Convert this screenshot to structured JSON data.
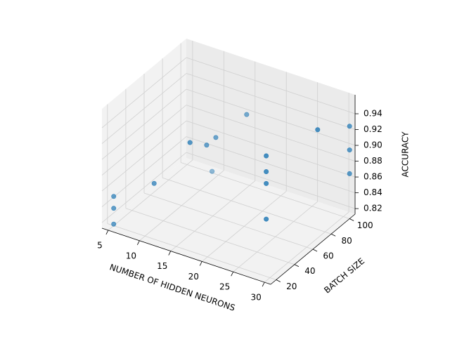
{
  "chart_data": {
    "type": "scatter3d",
    "x_label": "NUMBER OF HIDDEN NEURONS",
    "y_label": "BATCH SIZE",
    "z_label": "ACCURACY",
    "x": [
      5,
      5,
      5,
      10,
      15,
      14,
      14,
      9,
      16,
      25,
      25,
      25,
      25,
      30,
      31,
      31,
      31
    ],
    "y": [
      20,
      20,
      20,
      30,
      35,
      60,
      70,
      100,
      90,
      50,
      50,
      50,
      50,
      72,
      100,
      100,
      100
    ],
    "z": [
      0.815,
      0.835,
      0.85,
      0.87,
      0.93,
      0.9,
      0.9,
      0.815,
      0.915,
      0.925,
      0.905,
      0.89,
      0.845,
      0.95,
      0.93,
      0.9,
      0.87
    ],
    "color": "#1f77b4",
    "xlim": [
      4,
      31
    ],
    "ylim": [
      14,
      106
    ],
    "zlim": [
      0.813,
      0.964
    ],
    "xticks": [
      5,
      10,
      15,
      20,
      25,
      30
    ],
    "yticks": [
      20,
      40,
      60,
      80,
      100
    ],
    "zticks": [
      0.82,
      0.84,
      0.86,
      0.88,
      {
        "value": 0.9,
        "label": "0.90"
      },
      0.92,
      0.94
    ],
    "grid": true
  }
}
